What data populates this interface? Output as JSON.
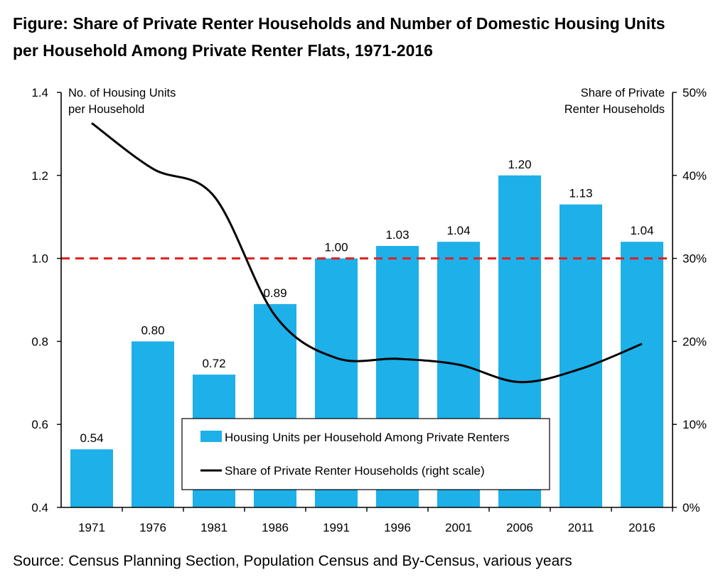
{
  "title_lines": [
    "Figure: Share of Private Renter Households and Number of Domestic Housing Units",
    "per Household Among Private Renter Flats, 1971-2016"
  ],
  "source": "Source: Census Planning Section, Population Census and By-Census, various years",
  "chart_data": {
    "type": "bar",
    "categories": [
      "1971",
      "1976",
      "1981",
      "1986",
      "1991",
      "1996",
      "2001",
      "2006",
      "2011",
      "2016"
    ],
    "left_axis": {
      "label_lines": [
        "No. of Housing Units",
        "per Household"
      ],
      "ylim": [
        0.4,
        1.4
      ],
      "ticks": [
        "0.4",
        "0.6",
        "0.8",
        "1.0",
        "1.2",
        "1.4"
      ]
    },
    "right_axis": {
      "label_lines": [
        "Share of Private",
        "Renter Households"
      ],
      "ylim": [
        0,
        50
      ],
      "ticks": [
        "0%",
        "10%",
        "20%",
        "30%",
        "40%",
        "50%"
      ]
    },
    "series": [
      {
        "name": "Housing Units per Household Among Private Renters",
        "type": "bar",
        "axis": "left",
        "color": "#1eb0e8",
        "values": [
          0.54,
          0.8,
          0.72,
          0.89,
          1.0,
          1.03,
          1.04,
          1.2,
          1.13,
          1.04
        ],
        "labels": [
          "0.54",
          "0.80",
          "0.72",
          "0.89",
          "1.00",
          "1.03",
          "1.04",
          "1.20",
          "1.13",
          "1.04"
        ]
      },
      {
        "name": "Share of Private Renter Households (right scale)",
        "type": "line",
        "axis": "right",
        "color": "#000000",
        "values": [
          46.3,
          40.8,
          37.5,
          23.1,
          18.0,
          17.9,
          17.2,
          15.1,
          16.7,
          19.7
        ]
      }
    ],
    "reference_line": {
      "value": 1.0,
      "axis": "left",
      "color": "#e02020",
      "style": "dashed"
    },
    "grid": false,
    "legend_position": "bottom-center"
  }
}
